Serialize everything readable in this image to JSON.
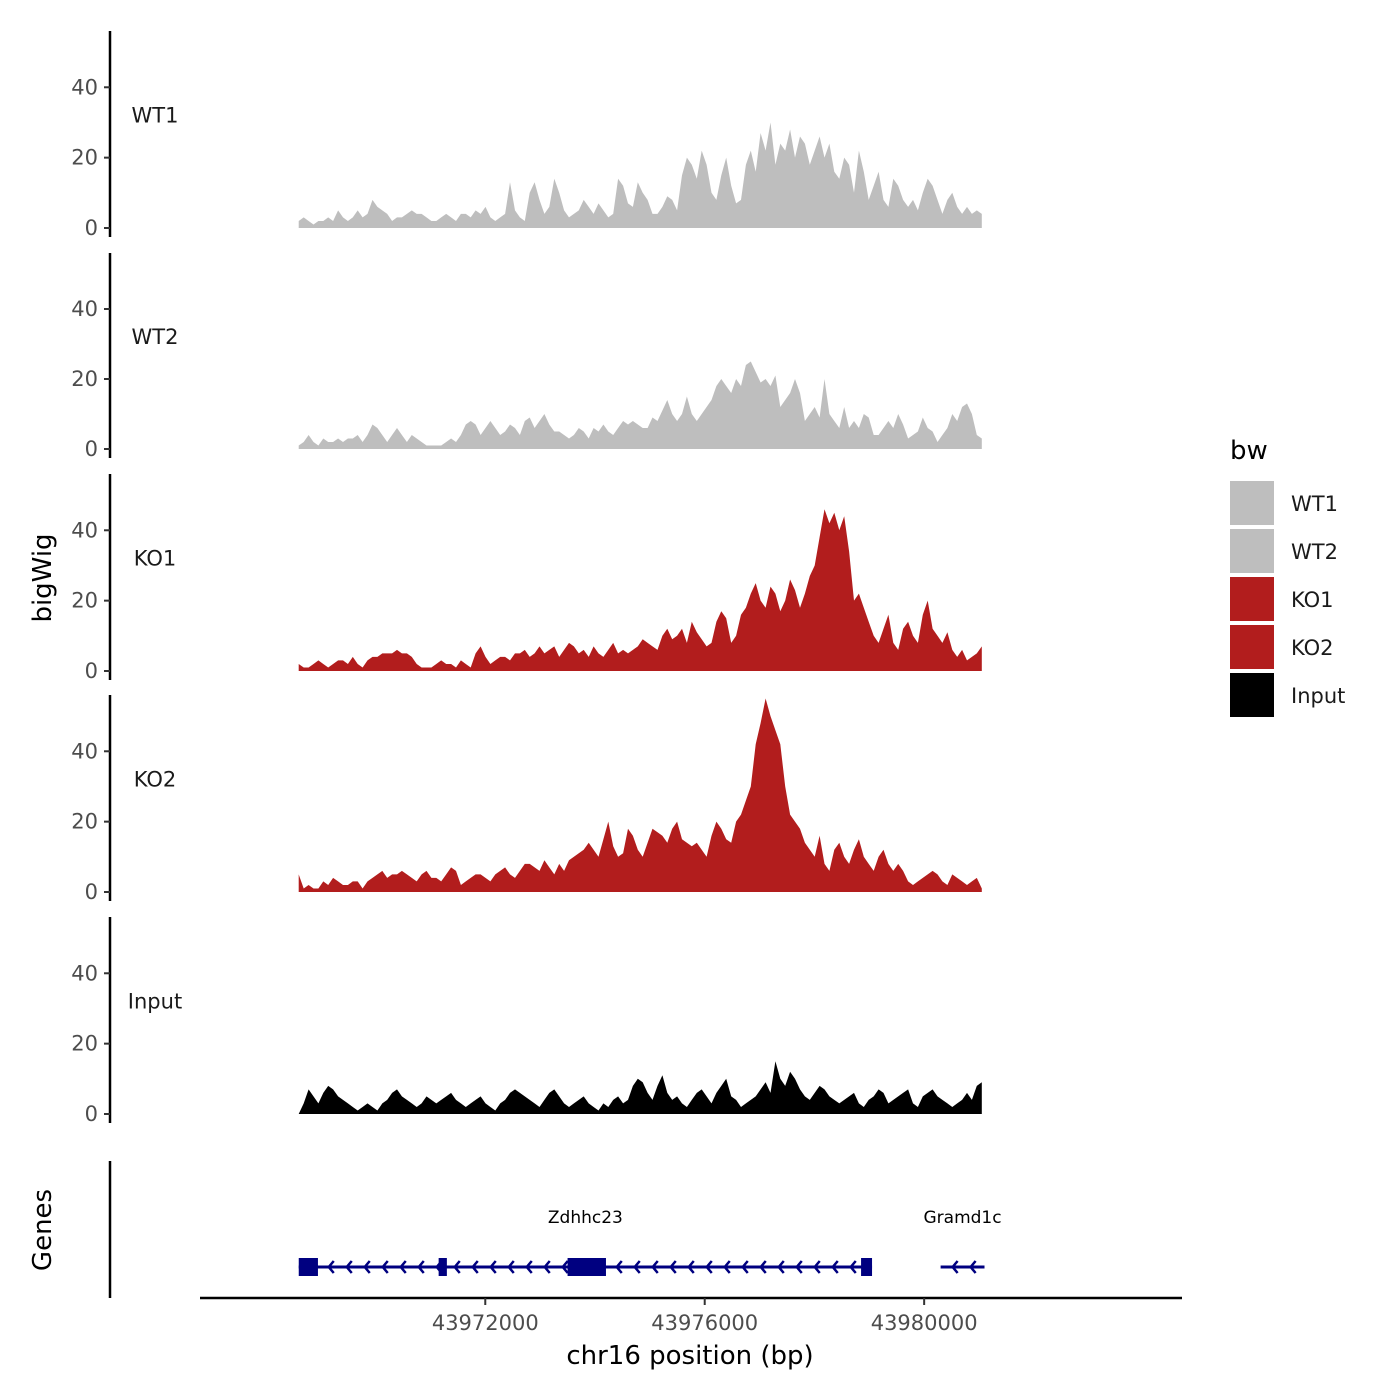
{
  "chart_data": {
    "type": "area",
    "title": "",
    "xlabel": "chr16 position (bp)",
    "ylabel": "bigWig",
    "genes_label": "Genes",
    "legend_title": "bw",
    "region": {
      "chrom": "chr16",
      "start": 43968600,
      "end": 43981050
    },
    "xlim": [
      43966800,
      43984700
    ],
    "ylim": [
      0,
      56
    ],
    "x_ticks": [
      43972000,
      43976000,
      43980000
    ],
    "y_ticks": [
      0,
      20,
      40
    ],
    "series": [
      {
        "name": "WT1",
        "color": "#BEBEBE",
        "values": [
          2,
          3,
          2,
          1,
          2,
          2,
          3,
          2,
          5,
          3,
          2,
          3,
          5,
          3,
          4,
          8,
          6,
          5,
          4,
          2,
          3,
          3,
          4,
          5,
          4,
          4,
          3,
          2,
          2,
          3,
          4,
          3,
          2,
          4,
          4,
          3,
          5,
          4,
          6,
          3,
          2,
          3,
          4,
          13,
          5,
          3,
          2,
          10,
          13,
          8,
          4,
          6,
          14,
          10,
          5,
          3,
          4,
          5,
          8,
          6,
          4,
          7,
          5,
          3,
          4,
          14,
          12,
          7,
          6,
          13,
          10,
          8,
          4,
          4,
          6,
          9,
          8,
          5,
          15,
          20,
          18,
          14,
          22,
          18,
          10,
          8,
          15,
          20,
          12,
          7,
          8,
          18,
          22,
          16,
          27,
          22,
          30,
          18,
          24,
          22,
          28,
          20,
          26,
          24,
          18,
          22,
          26,
          20,
          24,
          16,
          14,
          20,
          18,
          10,
          22,
          16,
          8,
          12,
          16,
          8,
          6,
          14,
          12,
          8,
          6,
          8,
          5,
          10,
          14,
          12,
          8,
          4,
          8,
          10,
          6,
          4,
          6,
          4,
          5,
          4
        ]
      },
      {
        "name": "WT2",
        "color": "#BEBEBE",
        "values": [
          1,
          2,
          4,
          2,
          1,
          3,
          2,
          2,
          3,
          2,
          3,
          3,
          4,
          2,
          4,
          7,
          6,
          4,
          2,
          4,
          6,
          4,
          2,
          4,
          3,
          2,
          1,
          1,
          1,
          1,
          2,
          3,
          2,
          4,
          7,
          8,
          7,
          4,
          6,
          8,
          6,
          4,
          5,
          7,
          6,
          4,
          8,
          9,
          6,
          8,
          10,
          7,
          5,
          5,
          4,
          3,
          4,
          6,
          5,
          3,
          6,
          5,
          7,
          5,
          4,
          6,
          8,
          7,
          8,
          7,
          6,
          6,
          9,
          8,
          11,
          14,
          10,
          8,
          10,
          15,
          10,
          8,
          10,
          12,
          14,
          18,
          20,
          18,
          16,
          20,
          18,
          24,
          25,
          22,
          19,
          20,
          18,
          21,
          12,
          14,
          16,
          20,
          16,
          8,
          10,
          12,
          9,
          20,
          10,
          8,
          6,
          12,
          6,
          8,
          6,
          10,
          9,
          4,
          4,
          6,
          8,
          6,
          10,
          7,
          3,
          4,
          5,
          9,
          6,
          5,
          2,
          4,
          6,
          10,
          8,
          12,
          13,
          10,
          4,
          3
        ]
      },
      {
        "name": "KO1",
        "color": "#B21D1D",
        "values": [
          2,
          1,
          1,
          2,
          3,
          2,
          1,
          2,
          3,
          3,
          2,
          4,
          2,
          1,
          3,
          4,
          4,
          5,
          5,
          5,
          6,
          5,
          5,
          4,
          2,
          1,
          1,
          1,
          2,
          3,
          2,
          2,
          1,
          3,
          2,
          1,
          5,
          7,
          4,
          2,
          3,
          4,
          4,
          3,
          5,
          5,
          6,
          4,
          5,
          7,
          5,
          6,
          7,
          4,
          6,
          8,
          7,
          5,
          6,
          4,
          7,
          5,
          4,
          6,
          8,
          5,
          6,
          5,
          6,
          7,
          9,
          8,
          7,
          6,
          10,
          12,
          9,
          10,
          12,
          8,
          14,
          11,
          9,
          7,
          8,
          14,
          17,
          15,
          8,
          10,
          16,
          18,
          22,
          25,
          20,
          18,
          24,
          22,
          17,
          20,
          26,
          23,
          18,
          22,
          27,
          30,
          38,
          46,
          42,
          45,
          40,
          44,
          34,
          20,
          22,
          18,
          14,
          10,
          8,
          12,
          16,
          8,
          6,
          12,
          14,
          10,
          8,
          16,
          20,
          12,
          10,
          8,
          11,
          6,
          4,
          6,
          3,
          4,
          5,
          7
        ]
      },
      {
        "name": "KO2",
        "color": "#B21D1D",
        "values": [
          5,
          1,
          2,
          1,
          1,
          3,
          2,
          4,
          3,
          2,
          2,
          3,
          3,
          1,
          3,
          4,
          5,
          6,
          4,
          5,
          5,
          6,
          5,
          4,
          3,
          5,
          6,
          4,
          4,
          3,
          5,
          7,
          6,
          2,
          3,
          4,
          5,
          5,
          4,
          3,
          5,
          6,
          7,
          5,
          4,
          6,
          8,
          8,
          7,
          6,
          9,
          7,
          5,
          8,
          6,
          9,
          10,
          11,
          12,
          14,
          12,
          10,
          15,
          20,
          13,
          10,
          11,
          18,
          16,
          12,
          10,
          14,
          18,
          17,
          16,
          14,
          18,
          20,
          15,
          14,
          13,
          14,
          12,
          10,
          16,
          20,
          18,
          15,
          14,
          20,
          22,
          26,
          30,
          42,
          48,
          55,
          50,
          46,
          42,
          30,
          22,
          20,
          18,
          14,
          12,
          10,
          16,
          8,
          6,
          12,
          14,
          10,
          8,
          12,
          15,
          10,
          8,
          6,
          10,
          12,
          8,
          6,
          8,
          6,
          3,
          2,
          3,
          4,
          5,
          6,
          5,
          3,
          2,
          5,
          4,
          3,
          2,
          3,
          4,
          1
        ]
      },
      {
        "name": "Input",
        "color": "#000000",
        "values": [
          0,
          3,
          7,
          5,
          3,
          6,
          8,
          7,
          5,
          4,
          3,
          2,
          1,
          2,
          3,
          2,
          1,
          3,
          4,
          6,
          7,
          5,
          4,
          3,
          2,
          3,
          5,
          4,
          3,
          4,
          5,
          6,
          4,
          3,
          2,
          3,
          4,
          5,
          3,
          2,
          1,
          3,
          4,
          6,
          7,
          6,
          5,
          4,
          3,
          2,
          4,
          6,
          7,
          5,
          3,
          2,
          3,
          4,
          5,
          3,
          2,
          1,
          3,
          2,
          4,
          5,
          3,
          4,
          8,
          10,
          9,
          6,
          4,
          8,
          11,
          6,
          4,
          5,
          3,
          2,
          4,
          6,
          7,
          5,
          3,
          6,
          8,
          10,
          5,
          4,
          2,
          3,
          4,
          5,
          7,
          9,
          6,
          15,
          10,
          8,
          12,
          10,
          7,
          5,
          4,
          6,
          8,
          7,
          5,
          4,
          3,
          4,
          5,
          6,
          3,
          2,
          4,
          5,
          7,
          6,
          3,
          4,
          5,
          6,
          7,
          3,
          2,
          5,
          6,
          7,
          5,
          4,
          3,
          2,
          3,
          4,
          6,
          4,
          8,
          9
        ]
      }
    ],
    "genes": [
      {
        "name": "Zdhhc23",
        "strand": "-",
        "start": 43968600,
        "end": 43979050,
        "exons": [
          [
            43968600,
            43968950
          ],
          [
            43971150,
            43971300
          ],
          [
            43973500,
            43974200
          ],
          [
            43978850,
            43979050
          ]
        ]
      },
      {
        "name": "Gramd1c",
        "strand": "-",
        "start": 43980300,
        "end": 43981100,
        "exons": []
      }
    ]
  }
}
